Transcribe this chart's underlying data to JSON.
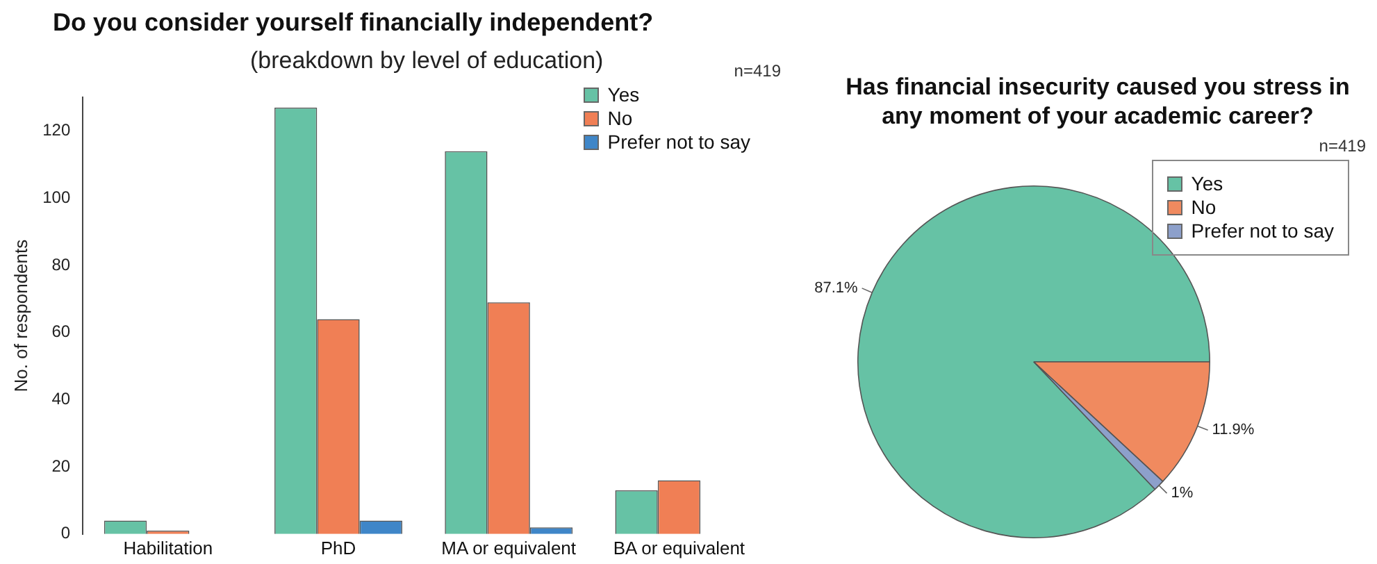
{
  "chart_data": [
    {
      "type": "bar",
      "title": "Do you consider yourself financially independent?",
      "subtitle": "(breakdown by level of education)",
      "ylabel": "No. of respondents",
      "annotations": [
        "n=419"
      ],
      "categories": [
        "Habilitation",
        "PhD",
        "MA or equivalent",
        "BA or equivalent"
      ],
      "series": [
        {
          "name": "Yes",
          "color": "#66c2a5",
          "values": [
            4,
            127,
            114,
            13
          ]
        },
        {
          "name": "No",
          "color": "#f07f55",
          "values": [
            1,
            64,
            69,
            16
          ]
        },
        {
          "name": "Prefer not to say",
          "color": "#3f86c8",
          "values": [
            0,
            4,
            2,
            0
          ]
        }
      ],
      "ylim": [
        0,
        130
      ],
      "yticks": [
        0,
        20,
        40,
        60,
        80,
        100,
        120
      ],
      "grid": false,
      "legend": "top right"
    },
    {
      "type": "pie",
      "title": "Has financial insecurity caused you stress in any moment of your academic career?",
      "annotations": [
        "n=419"
      ],
      "categories": [
        "Yes",
        "No",
        "Prefer not to say"
      ],
      "values": [
        87.1,
        11.9,
        1
      ],
      "colors": [
        "#66c2a5",
        "#f08a5f",
        "#8da0cb"
      ],
      "value_labels": [
        "87.1%",
        "11.9%",
        "1%"
      ],
      "legend": "top right"
    }
  ]
}
